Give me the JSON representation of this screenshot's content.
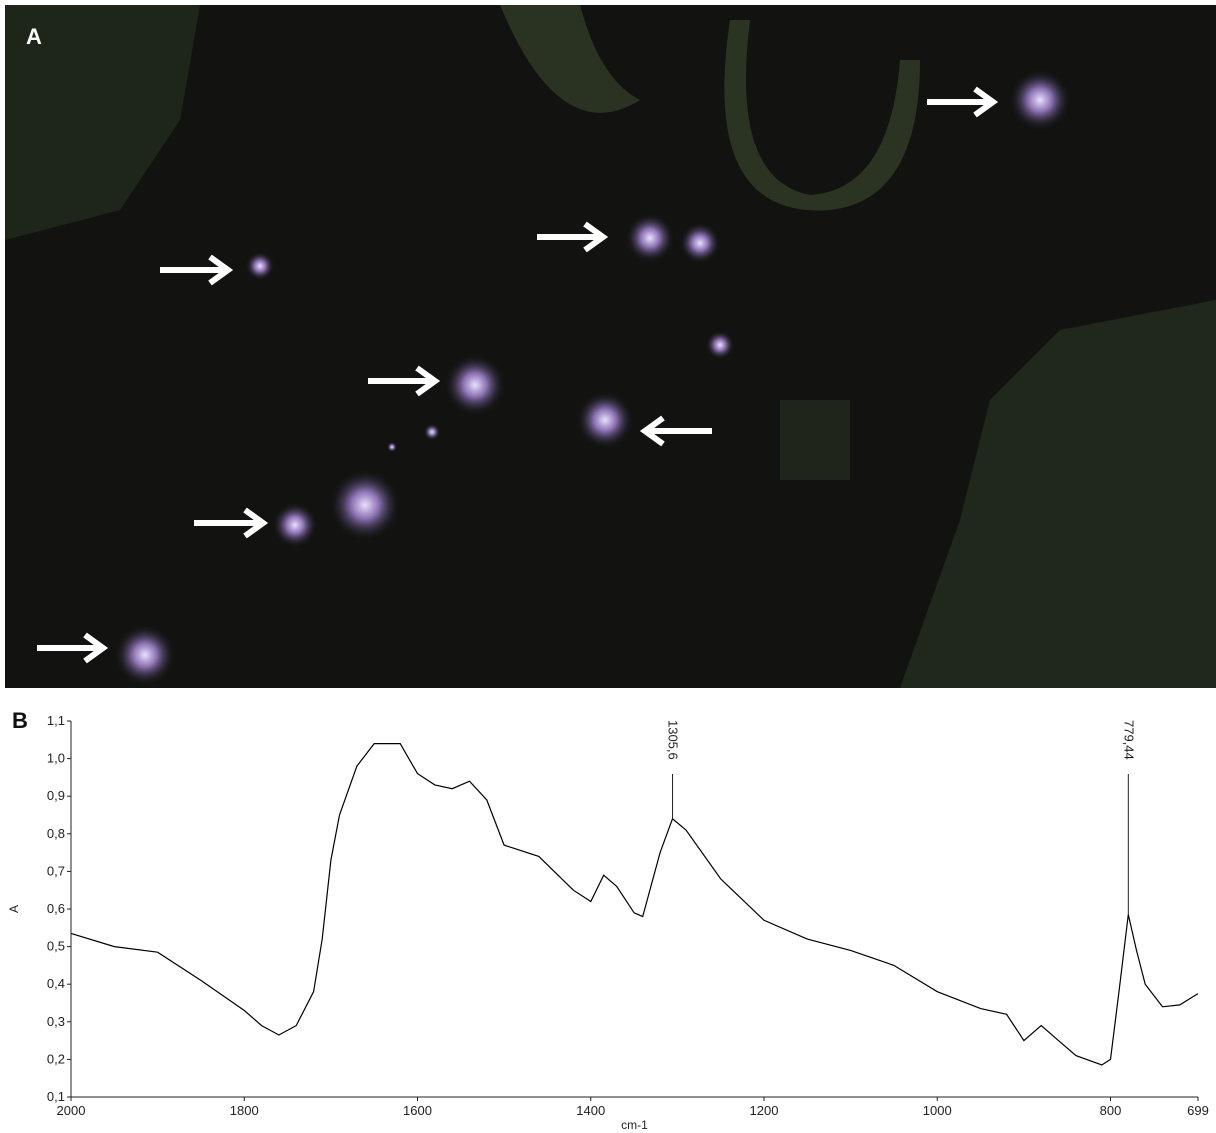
{
  "panel_a": {
    "label": "A"
  },
  "chart_data": {
    "type": "line",
    "panel_label": "B",
    "x_label": "cm-1",
    "y_label": "A",
    "x": [
      2000,
      1950,
      1900,
      1850,
      1800,
      1780,
      1760,
      1740,
      1720,
      1710,
      1700,
      1690,
      1670,
      1650,
      1620,
      1600,
      1580,
      1560,
      1540,
      1520,
      1500,
      1460,
      1420,
      1400,
      1385,
      1370,
      1350,
      1340,
      1320,
      1305.6,
      1290,
      1250,
      1200,
      1150,
      1100,
      1050,
      1000,
      950,
      920,
      900,
      880,
      860,
      840,
      810,
      800,
      790,
      779.44,
      770,
      760,
      740,
      720,
      699
    ],
    "values": [
      0.535,
      0.5,
      0.485,
      0.41,
      0.33,
      0.29,
      0.265,
      0.29,
      0.38,
      0.52,
      0.73,
      0.85,
      0.98,
      1.04,
      1.04,
      0.96,
      0.93,
      0.92,
      0.94,
      0.89,
      0.77,
      0.74,
      0.65,
      0.62,
      0.69,
      0.66,
      0.59,
      0.58,
      0.75,
      0.84,
      0.81,
      0.68,
      0.57,
      0.52,
      0.49,
      0.45,
      0.38,
      0.335,
      0.32,
      0.25,
      0.29,
      0.25,
      0.21,
      0.185,
      0.2,
      0.385,
      0.585,
      0.49,
      0.4,
      0.34,
      0.345,
      0.375
    ],
    "color": "#000000",
    "xlim": [
      2000,
      699
    ],
    "xticks": [
      2000,
      1800,
      1600,
      1400,
      1200,
      1000,
      800,
      699
    ],
    "ylim": [
      0.1,
      1.1
    ],
    "yticks": [
      {
        "value": 0.1,
        "label": "0,1"
      },
      {
        "value": 0.2,
        "label": "0,2"
      },
      {
        "value": 0.3,
        "label": "0,3"
      },
      {
        "value": 0.4,
        "label": "0,4"
      },
      {
        "value": 0.5,
        "label": "0,5"
      },
      {
        "value": 0.6,
        "label": "0,6"
      },
      {
        "value": 0.7,
        "label": "0,7"
      },
      {
        "value": 0.8,
        "label": "0,8"
      },
      {
        "value": 0.9,
        "label": "0,9"
      },
      {
        "value": 1.0,
        "label": "1,0"
      },
      {
        "value": 1.1,
        "label": "1,1"
      }
    ],
    "annotations": [
      {
        "text": "1305,6",
        "x": 1305.6,
        "y": 0.84
      },
      {
        "text": "779,44",
        "x": 779.44,
        "y": 0.585
      }
    ]
  }
}
